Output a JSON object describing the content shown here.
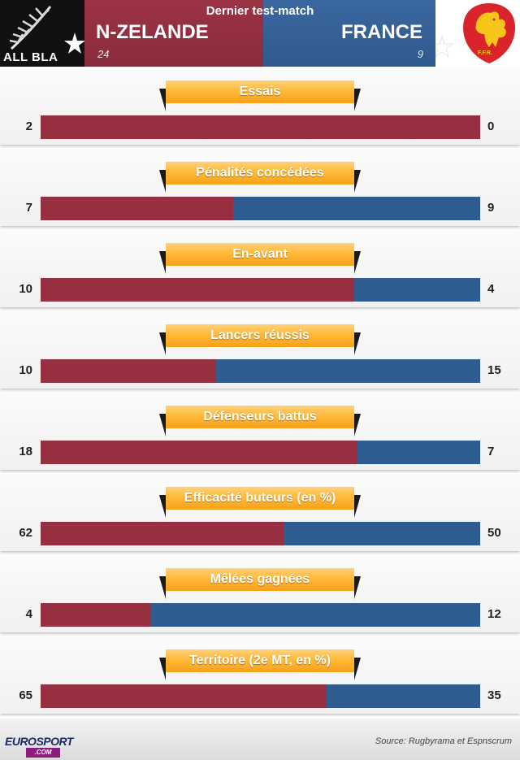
{
  "header": {
    "title": "Dernier test-match",
    "home": {
      "name": "N-ZELANDE",
      "score": "24",
      "logo_text": "ALL BLA"
    },
    "away": {
      "name": "FRANCE",
      "score": "9",
      "logo_text": "F.F.R."
    }
  },
  "colors": {
    "home": "#962f3f",
    "away": "#2f5d92",
    "label": "#f7a11a"
  },
  "chart_data": {
    "type": "bar",
    "orientation": "horizontal-stacked-comparison",
    "series": [
      {
        "name": "N-ZELANDE",
        "values": [
          2,
          7,
          10,
          10,
          18,
          62,
          4,
          65
        ]
      },
      {
        "name": "FRANCE",
        "values": [
          0,
          9,
          4,
          15,
          7,
          50,
          12,
          35
        ]
      }
    ],
    "categories": [
      "Essais",
      "Pénalités concédées",
      "En-avant",
      "Lancers réussis",
      "Défenseurs battus",
      "Efficacité buteurs (en %)",
      "Mêlées gagnées",
      "Territoire (2e MT, en %)"
    ]
  },
  "footer": {
    "brand": "EUROSPORT",
    "brand_suffix": ".COM",
    "source": "Source: Rugbyrama et Espnscrum"
  }
}
